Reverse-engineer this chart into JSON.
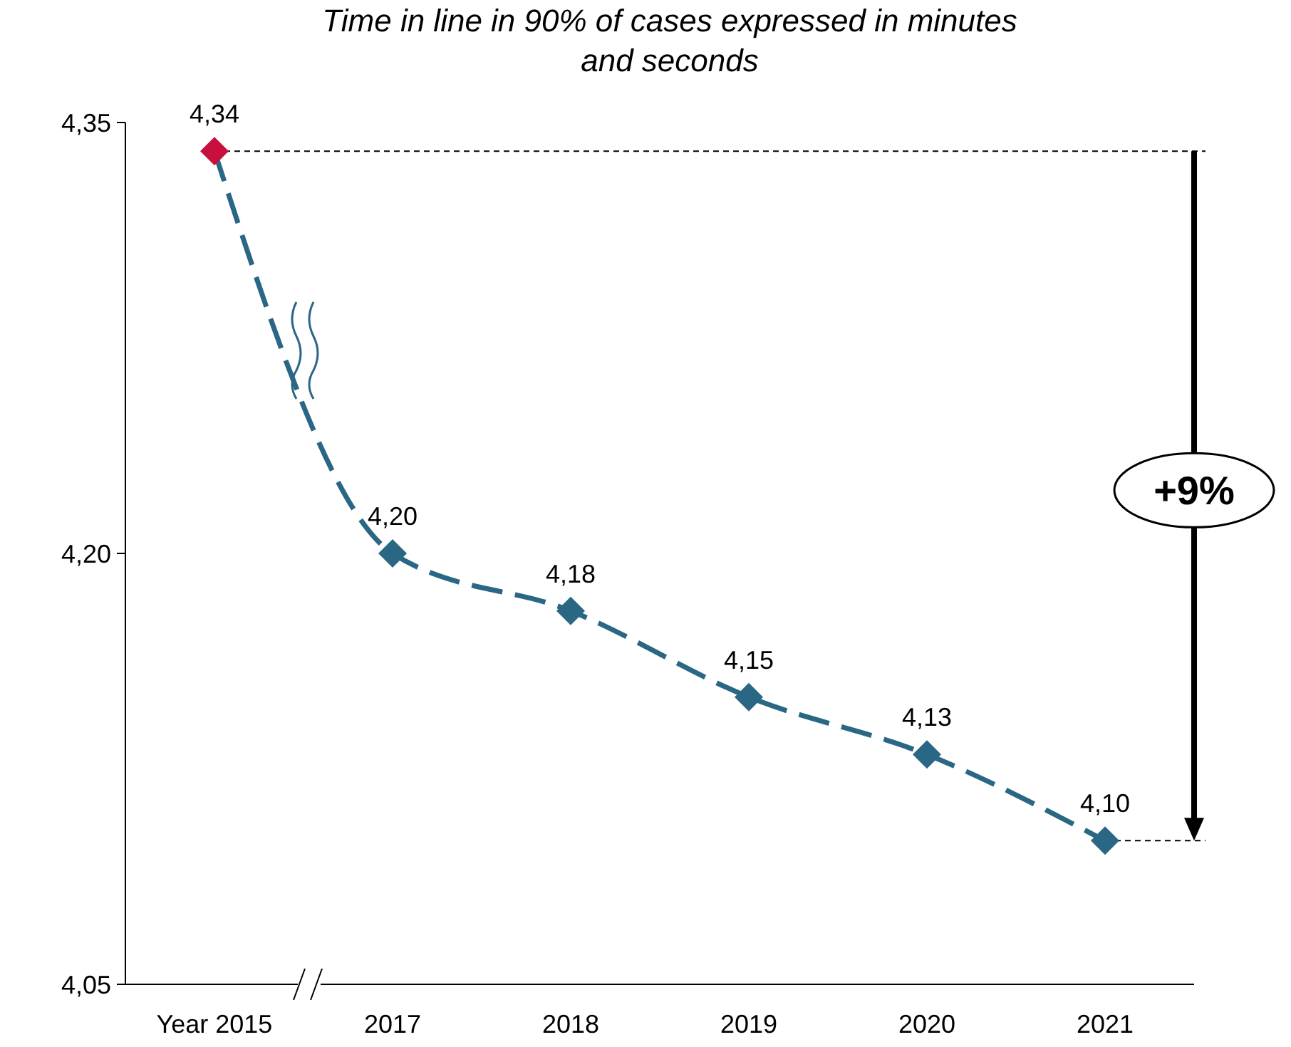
{
  "chart_data": {
    "type": "line",
    "title": "Time in line in 90% of cases expressed in minutes and seconds",
    "categories": [
      "Year 2015",
      "2017",
      "2018",
      "2019",
      "2020",
      "2021"
    ],
    "series": [
      {
        "color": "#2a6785",
        "colors": [
          "#c8103e",
          "#2a6785",
          "#2a6785",
          "#2a6785",
          "#2a6785",
          "#2a6785"
        ],
        "values": [
          4.34,
          4.2,
          4.18,
          4.15,
          4.13,
          4.1
        ],
        "value_labels": [
          "4,34",
          "4,20",
          "4,18",
          "4,15",
          "4,13",
          "4,10"
        ]
      }
    ],
    "ylim": [
      4.05,
      4.35
    ],
    "yticks": [
      {
        "value": 4.05,
        "label": "4,05"
      },
      {
        "value": 4.2,
        "label": "4,20"
      },
      {
        "value": 4.35,
        "label": "4,35"
      }
    ],
    "ref_lines": [
      {
        "axis": "y",
        "value": 4.34,
        "color": "#000000",
        "line_style": "dashed"
      },
      {
        "axis": "y",
        "value": 4.1,
        "color": "#000000",
        "line_style": "dashed"
      }
    ],
    "annotations": [
      "+9%"
    ],
    "marker": "diamond",
    "line_style": "dashed",
    "grid": false
  }
}
